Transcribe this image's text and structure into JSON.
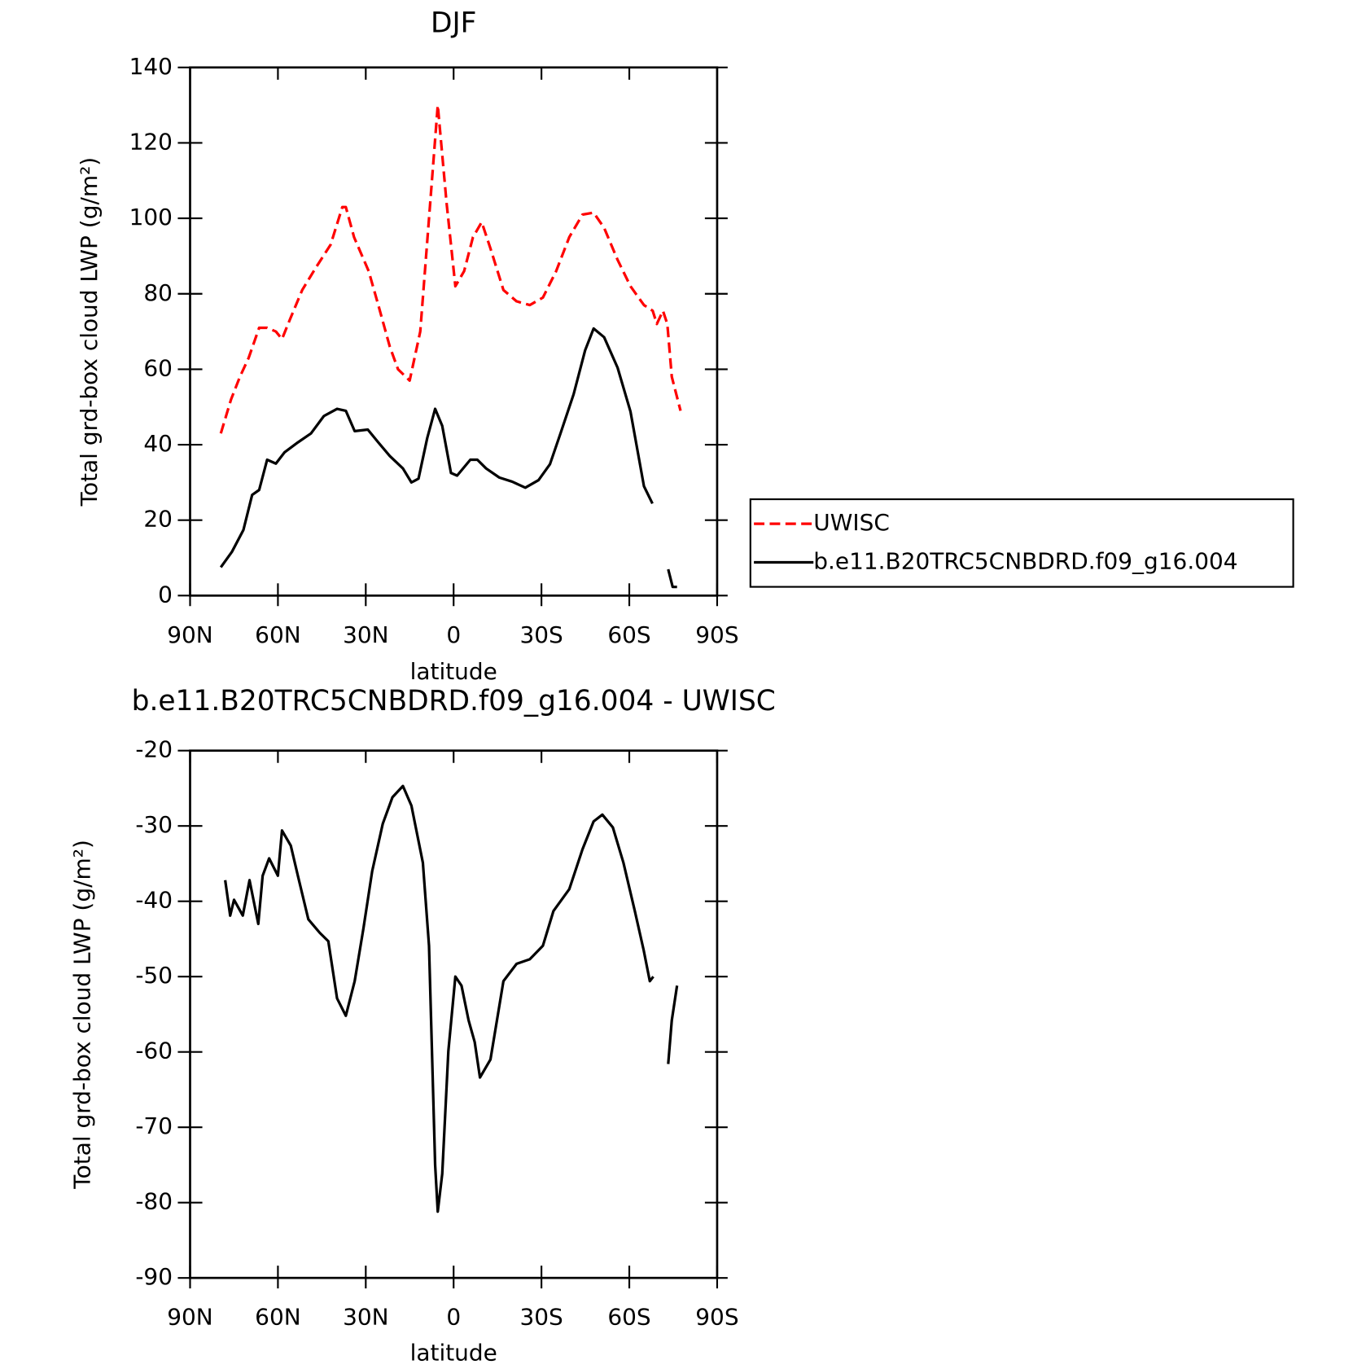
{
  "chart_data": [
    {
      "type": "line",
      "title": "DJF",
      "xlabel": "latitude",
      "ylabel": "Total grd-box cloud LWP (g/m²)",
      "xlim": [
        90,
        -90
      ],
      "xticks": [
        {
          "value": 90,
          "label": "90N"
        },
        {
          "value": 60,
          "label": "60N"
        },
        {
          "value": 30,
          "label": "30N"
        },
        0,
        {
          "value": -30,
          "label": "30S"
        },
        {
          "value": -60,
          "label": "60S"
        },
        {
          "value": -90,
          "label": "90S"
        }
      ],
      "ylim": [
        0,
        140
      ],
      "yticks": [
        0,
        20,
        40,
        60,
        80,
        100,
        120,
        140
      ],
      "legend": "outside-right",
      "series": [
        {
          "name": "UWISC",
          "color": "#ff0000",
          "dash": "dashed",
          "x": [
            79.5,
            76,
            73,
            70,
            66.4,
            63.7,
            60.7,
            58.6,
            56,
            51.7,
            47,
            42,
            38,
            36.8,
            34,
            29,
            25.7,
            21.8,
            19,
            15,
            11.4,
            8.4,
            5.4,
            2.4,
            -0.6,
            -3.6,
            -6.6,
            -9.6,
            -12.6,
            -17,
            -21.5,
            -26,
            -30.5,
            -35,
            -39.5,
            -44,
            -47.8,
            -51.4,
            -56,
            -60.4,
            -65,
            -68,
            -69.4,
            -71.5,
            -73,
            -74.5,
            -77.5
          ],
          "values": [
            43,
            52,
            58,
            63,
            71,
            71,
            70,
            68,
            73,
            81,
            87,
            93,
            103,
            103,
            95,
            86,
            77,
            66,
            60,
            57,
            70,
            100,
            130,
            104,
            82,
            86,
            95,
            99,
            92,
            81,
            78,
            77,
            79,
            86,
            95,
            101,
            101.5,
            97.5,
            89,
            82,
            77,
            75.5,
            72,
            75.5,
            72,
            58,
            49
          ]
        },
        {
          "name": "b.e11.B20TRC5CNBDRD.f09_g16.004",
          "color": "#000000",
          "dash": "solid",
          "x": [
            79.5,
            75.7,
            71.8,
            68.8,
            66.4,
            63.7,
            60.7,
            57.7,
            53.2,
            48.7,
            44.3,
            39.8,
            36.8,
            33.8,
            29.3,
            25.7,
            21.8,
            17.3,
            14.4,
            12,
            9,
            6.3,
            3.9,
            0.9,
            -1.2,
            -5.7,
            -8.1,
            -11.1,
            -15.6,
            -20,
            -24.5,
            -29,
            -32.9,
            -36.5,
            -41,
            -44.9,
            -47.8,
            -51.4,
            -56,
            -60.4,
            -65,
            -67.9,
            -70.5,
            -73.3,
            -74.8,
            -76.3
          ],
          "values": [
            7.5,
            11.6,
            17.4,
            26.7,
            28,
            36,
            35,
            38,
            40.6,
            43,
            47.6,
            49.5,
            49,
            43.6,
            44,
            40.6,
            37,
            33.7,
            30,
            31,
            41.8,
            49.5,
            45,
            32.5,
            31.8,
            36,
            36,
            33.7,
            31.3,
            30.2,
            28.6,
            30.6,
            34.8,
            43,
            53.4,
            65,
            70.8,
            68.5,
            60.4,
            48.8,
            29,
            24.4,
            null,
            7,
            2.3,
            2.3
          ]
        }
      ]
    },
    {
      "type": "line",
      "title": "b.e11.B20TRC5CNBDRD.f09_g16.004 - UWISC",
      "xlabel": "latitude",
      "ylabel": "Total grd-box cloud LWP (g/m²)",
      "xlim": [
        90,
        -90
      ],
      "xticks": [
        {
          "value": 90,
          "label": "90N"
        },
        {
          "value": 60,
          "label": "60N"
        },
        {
          "value": 30,
          "label": "30N"
        },
        0,
        {
          "value": -30,
          "label": "30S"
        },
        {
          "value": -60,
          "label": "60S"
        },
        {
          "value": -90,
          "label": "90S"
        }
      ],
      "ylim": [
        -90,
        -20
      ],
      "yticks": [
        -90,
        -80,
        -70,
        -60,
        -50,
        -40,
        -30,
        -20
      ],
      "series": [
        {
          "color": "#000000",
          "dash": "solid",
          "x": [
            78,
            76.3,
            75,
            72,
            69.7,
            66.7,
            65.2,
            63,
            60,
            58.6,
            55.6,
            53.2,
            49.6,
            45.7,
            42.8,
            39.8,
            36.8,
            33.8,
            30.8,
            27.8,
            24.2,
            20.9,
            17.3,
            14.4,
            10.5,
            8.4,
            6.3,
            5.4,
            3.9,
            1.8,
            -0.6,
            -2.7,
            -5.1,
            -7.2,
            -9,
            -12.6,
            -17,
            -21.5,
            -26,
            -30.5,
            -34.1,
            -39.5,
            -44,
            -47.8,
            -50.8,
            -54.4,
            -58,
            -61.9,
            -64.9,
            -67,
            -68.2,
            -70.5,
            -73.3,
            -74.5,
            -76.3
          ],
          "values": [
            -37.2,
            -41.9,
            -39.8,
            -41.9,
            -37.2,
            -43,
            -36.6,
            -34.3,
            -36.6,
            -30.6,
            -32.6,
            -36.6,
            -42.4,
            -44.2,
            -45.3,
            -52.9,
            -55.2,
            -50.6,
            -43.6,
            -36,
            -29.7,
            -26.2,
            -24.7,
            -27.3,
            -34.9,
            -45.9,
            -75,
            -81.2,
            -76.2,
            -59.9,
            -50,
            -51.2,
            -55.8,
            -58.7,
            -63.4,
            -61,
            -50.6,
            -48.3,
            -47.7,
            -45.9,
            -41.3,
            -38.4,
            -33.1,
            -29.4,
            -28.5,
            -30.2,
            -34.9,
            -41.3,
            -46.5,
            -50.6,
            -50,
            null,
            -61.6,
            -55.8,
            -51.2
          ]
        }
      ]
    }
  ]
}
